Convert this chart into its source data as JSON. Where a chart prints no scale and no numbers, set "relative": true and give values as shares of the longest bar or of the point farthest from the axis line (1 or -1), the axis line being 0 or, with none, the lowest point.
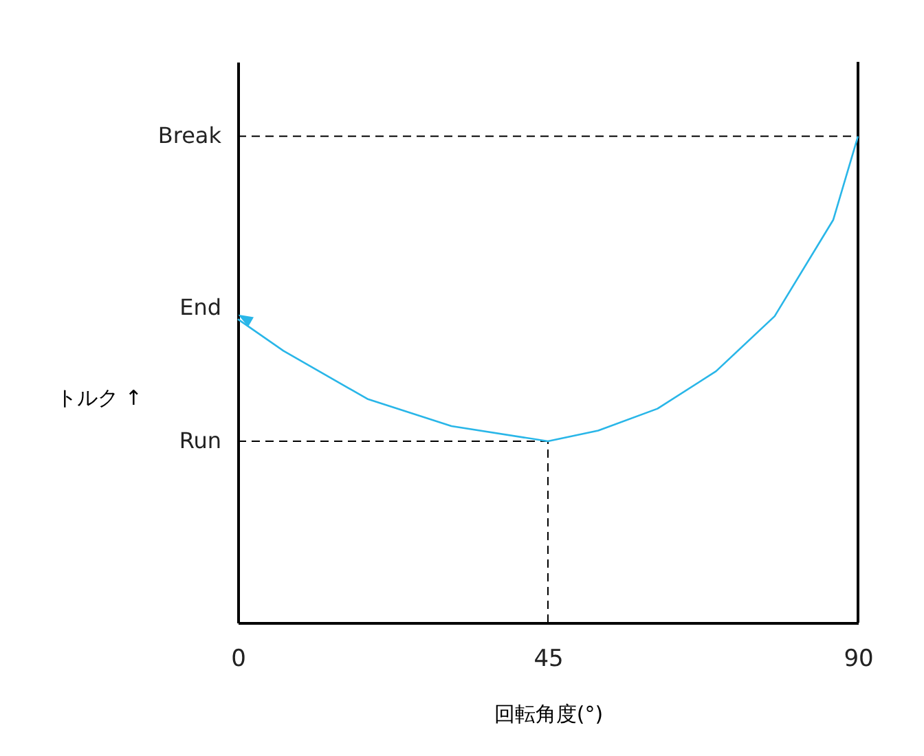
{
  "chart_data": {
    "type": "line",
    "relative": true,
    "xlabel": "回転角度(°)",
    "ylabel": "トルク ↑",
    "x": [
      0,
      6.6,
      18.8,
      31,
      45,
      52.3,
      60.9,
      69.4,
      77.9,
      86.4,
      90
    ],
    "series": [
      {
        "color": "#29b6e8",
        "values": [
          0.624,
          0.559,
          0.46,
          0.404,
          0.373,
          0.395,
          0.44,
          0.517,
          0.63,
          0.828,
          1
        ]
      }
    ],
    "xlim": [
      0,
      90
    ],
    "xticks": [
      0,
      45,
      90
    ],
    "ref_lines": [
      {
        "axis": "y",
        "value": 1,
        "label": "Break",
        "color": "#000000",
        "line_style": "dashed"
      },
      {
        "axis": "y",
        "value": 0.373,
        "label": "Run",
        "color": "#000000",
        "line_style": "dashed"
      },
      {
        "axis": "x",
        "value": 45,
        "label": null,
        "color": "#000000",
        "line_style": "dashed"
      }
    ],
    "annotations": [
      {
        "text": "End",
        "x": 0,
        "y": 0.624
      }
    ],
    "grid": false,
    "marker": "none",
    "line_style": "solid"
  }
}
